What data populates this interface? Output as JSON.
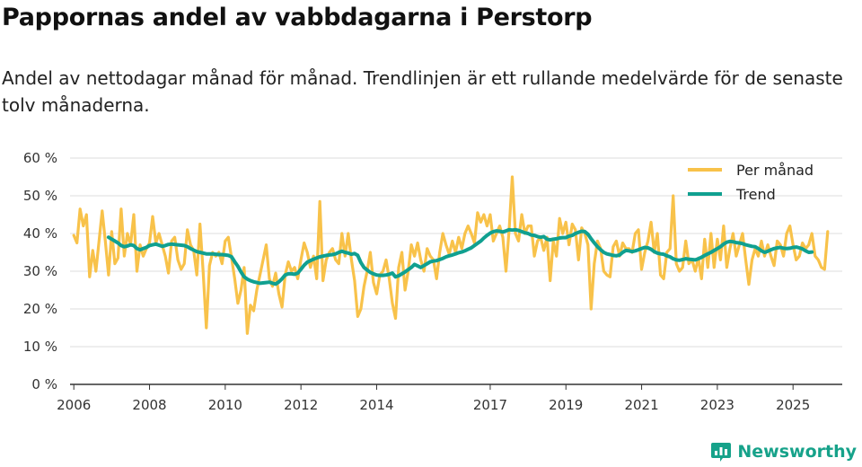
{
  "title": "Pappornas andel av vabbdagarna i Perstorp",
  "subtitle": "Andel av nettodagar månad för månad. Trendlinjen är ett rullande medelvärde för de senaste tolv månaderna.",
  "brand": {
    "name": "Newsworthy",
    "color": "#16a28a"
  },
  "colors": {
    "monthly": "#f8c24a",
    "trend": "#10a090",
    "grid": "#dddddd",
    "axis": "#333333"
  },
  "chart_data": {
    "type": "line",
    "title": "Pappornas andel av vabbdagarna i Perstorp",
    "xlabel": "",
    "ylabel": "",
    "ylim": [
      0,
      60
    ],
    "yticks": [
      0,
      10,
      20,
      30,
      40,
      50,
      60
    ],
    "ytick_labels": [
      "0 %",
      "10 %",
      "20 %",
      "30 %",
      "40 %",
      "50 %",
      "60 %"
    ],
    "xlim": [
      2005.9,
      2026.3
    ],
    "xticks": [
      2006,
      2008,
      2010,
      2012,
      2014,
      2017,
      2019,
      2021,
      2023,
      2025
    ],
    "xtick_labels": [
      "2006",
      "2008",
      "2010",
      "2012",
      "2014",
      "2017",
      "2019",
      "2021",
      "2023",
      "2025"
    ],
    "legend_position": "top-right",
    "series": [
      {
        "name": "Per månad",
        "color": "#f8c24a",
        "x_start": 2006.0,
        "step": 0.08333,
        "values": [
          39.5,
          37.5,
          46.5,
          42.0,
          45.0,
          28.5,
          35.5,
          30.0,
          38.0,
          46.0,
          38.0,
          29.0,
          40.5,
          32.0,
          33.5,
          46.5,
          34.0,
          40.0,
          37.0,
          45.0,
          30.0,
          37.0,
          34.0,
          36.0,
          37.5,
          44.5,
          37.5,
          40.0,
          37.0,
          34.0,
          29.5,
          38.0,
          39.0,
          33.0,
          30.5,
          32.0,
          41.0,
          37.0,
          35.5,
          29.0,
          42.5,
          30.0,
          15.0,
          31.5,
          35.0,
          34.0,
          35.0,
          32.0,
          38.0,
          39.0,
          33.5,
          28.0,
          21.5,
          25.0,
          31.0,
          13.5,
          21.0,
          19.5,
          25.0,
          29.0,
          33.0,
          37.0,
          28.0,
          26.0,
          29.5,
          24.0,
          20.5,
          29.0,
          32.5,
          30.0,
          31.0,
          28.0,
          33.0,
          37.5,
          35.0,
          31.0,
          34.0,
          28.0,
          48.5,
          27.5,
          33.0,
          35.0,
          36.0,
          33.0,
          32.0,
          40.0,
          34.0,
          40.0,
          33.0,
          27.5,
          18.0,
          20.0,
          26.0,
          30.0,
          35.0,
          27.0,
          24.0,
          29.0,
          30.0,
          33.0,
          28.0,
          21.5,
          17.5,
          31.0,
          35.0,
          25.0,
          30.0,
          37.0,
          34.0,
          37.5,
          33.0,
          30.0,
          36.0,
          34.0,
          33.0,
          28.0,
          35.0,
          40.0,
          37.0,
          34.5,
          38.0,
          35.0,
          39.0,
          36.0,
          40.0,
          42.0,
          40.0,
          37.5,
          45.5,
          43.0,
          45.0,
          42.0,
          45.0,
          38.0,
          40.0,
          42.0,
          39.0,
          30.0,
          41.0,
          55.0,
          40.0,
          38.0,
          45.0,
          40.0,
          42.0,
          42.0,
          34.0,
          38.0,
          39.0,
          35.5,
          39.0,
          27.5,
          38.0,
          34.0,
          44.0,
          40.0,
          43.0,
          37.0,
          42.5,
          41.0,
          33.0,
          41.5,
          40.0,
          37.0,
          20.0,
          32.0,
          38.0,
          36.0,
          30.0,
          29.0,
          28.5,
          36.5,
          38.0,
          34.0,
          37.5,
          36.0,
          36.0,
          35.0,
          40.0,
          41.0,
          30.5,
          35.0,
          38.0,
          43.0,
          35.0,
          40.0,
          29.0,
          28.0,
          35.0,
          36.0,
          50.0,
          32.0,
          30.0,
          31.0,
          38.0,
          32.0,
          33.0,
          30.0,
          33.5,
          28.0,
          38.5,
          31.0,
          40.0,
          31.0,
          38.5,
          33.0,
          42.0,
          31.0,
          36.0,
          40.0,
          34.0,
          37.0,
          40.0,
          33.0,
          26.5,
          33.0,
          36.0,
          34.0,
          38.0,
          34.0,
          37.0,
          34.0,
          31.5,
          38.0,
          37.0,
          34.0,
          40.0,
          42.0,
          37.0,
          33.0,
          34.0,
          37.5,
          36.0,
          37.0,
          40.0,
          34.0,
          33.0,
          31.0,
          30.5,
          40.5
        ]
      },
      {
        "name": "Trend",
        "color": "#10a090",
        "x_start": 2006.9167,
        "step": 0.08333,
        "values": [
          39.0,
          38.5,
          38.0,
          37.5,
          36.8,
          36.5,
          36.7,
          37.0,
          36.8,
          36.0,
          35.7,
          36.0,
          36.3,
          36.8,
          37.0,
          37.2,
          36.9,
          36.6,
          36.8,
          37.1,
          37.2,
          37.1,
          37.0,
          36.9,
          36.8,
          36.5,
          36.0,
          35.6,
          35.2,
          35.0,
          34.8,
          34.6,
          34.6,
          34.6,
          34.5,
          34.4,
          34.4,
          34.3,
          34.2,
          33.8,
          32.5,
          31.3,
          29.8,
          28.5,
          27.9,
          27.5,
          27.2,
          27.0,
          26.8,
          26.9,
          27.0,
          27.1,
          26.8,
          26.6,
          27.2,
          28.0,
          29.0,
          29.3,
          29.3,
          29.2,
          29.5,
          30.5,
          31.6,
          32.4,
          32.8,
          33.2,
          33.5,
          33.8,
          34.0,
          34.2,
          34.3,
          34.4,
          34.6,
          35.0,
          35.3,
          35.0,
          34.8,
          34.5,
          34.7,
          34.2,
          32.3,
          31.0,
          30.3,
          29.7,
          29.3,
          29.0,
          28.9,
          28.9,
          29.0,
          29.2,
          29.5,
          28.5,
          28.8,
          29.3,
          29.8,
          30.4,
          31.0,
          31.8,
          31.4,
          31.0,
          31.5,
          32.0,
          32.5,
          32.7,
          32.8,
          33.1,
          33.4,
          33.8,
          34.1,
          34.3,
          34.6,
          34.9,
          35.1,
          35.4,
          35.8,
          36.2,
          36.8,
          37.4,
          38.0,
          38.8,
          39.5,
          40.1,
          40.5,
          40.7,
          40.6,
          40.4,
          40.7,
          41.0,
          40.9,
          41.0,
          40.8,
          40.5,
          40.2,
          40.0,
          39.6,
          39.5,
          39.2,
          39.0,
          39.2,
          38.5,
          38.3,
          38.5,
          38.6,
          38.8,
          38.9,
          38.9,
          39.3,
          39.5,
          40.0,
          40.3,
          40.6,
          40.5,
          39.8,
          38.6,
          37.5,
          36.5,
          35.7,
          35.0,
          34.6,
          34.4,
          34.2,
          34.1,
          34.3,
          35.0,
          35.5,
          35.4,
          35.2,
          35.4,
          35.7,
          36.0,
          36.3,
          36.2,
          35.8,
          35.2,
          34.8,
          34.6,
          34.5,
          34.1,
          33.8,
          33.3,
          33.0,
          32.9,
          33.1,
          33.3,
          33.2,
          33.1,
          33.0,
          33.3,
          33.7,
          34.2,
          34.6,
          35.0,
          35.5,
          36.0,
          36.5,
          37.2,
          37.7,
          37.9,
          37.8,
          37.6,
          37.5,
          37.3,
          37.0,
          36.8,
          36.6,
          36.5,
          36.0,
          35.4,
          35.0,
          35.3,
          35.7,
          36.0,
          36.2,
          36.3,
          36.1,
          36.0,
          36.1,
          36.3,
          36.4,
          36.2,
          35.9,
          35.4,
          35.0,
          35.1
        ]
      }
    ]
  }
}
